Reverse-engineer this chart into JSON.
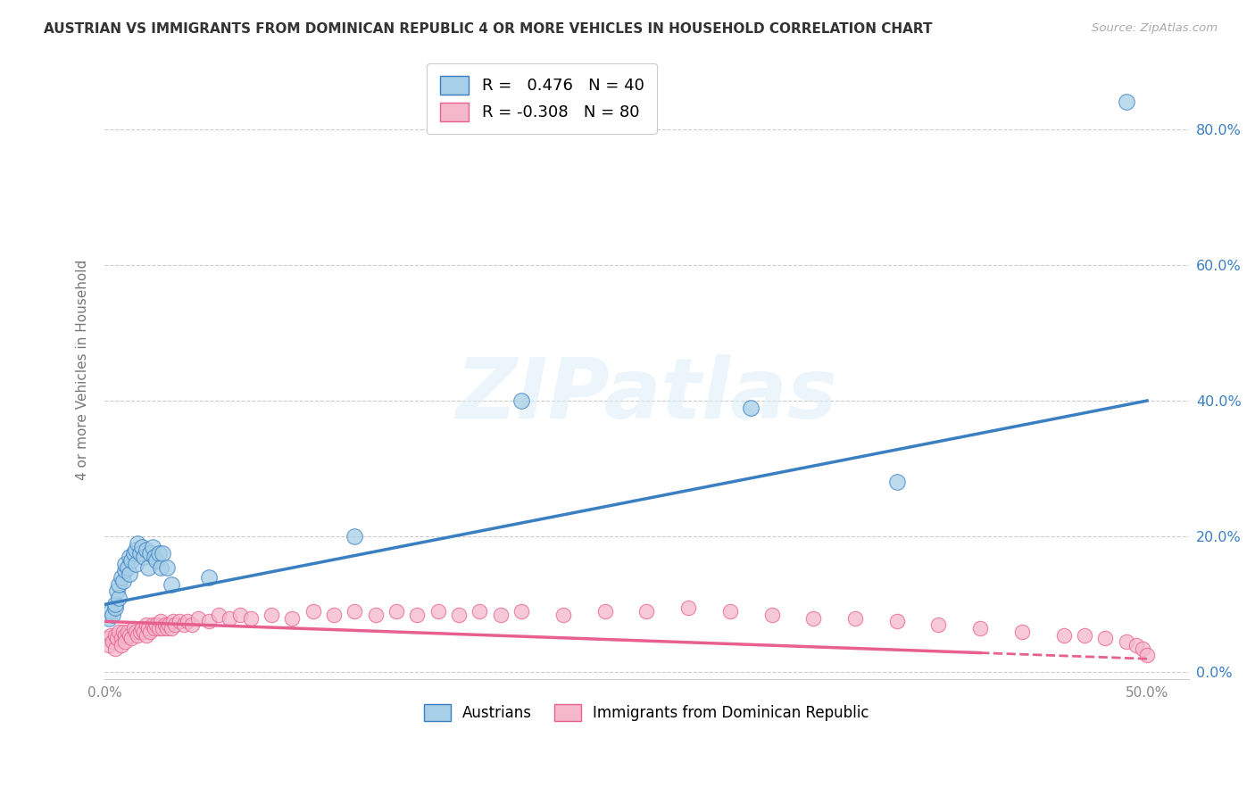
{
  "title": "AUSTRIAN VS IMMIGRANTS FROM DOMINICAN REPUBLIC 4 OR MORE VEHICLES IN HOUSEHOLD CORRELATION CHART",
  "source": "Source: ZipAtlas.com",
  "ylabel": "4 or more Vehicles in Household",
  "xlim": [
    0.0,
    0.52
  ],
  "ylim": [
    -0.01,
    0.9
  ],
  "legend1_r": "0.476",
  "legend1_n": "40",
  "legend2_r": "-0.308",
  "legend2_n": "80",
  "blue_color": "#a8cfe8",
  "pink_color": "#f5b8cb",
  "line_blue": "#3a7fc1",
  "line_pink": "#e86090",
  "watermark_text": "ZIPatlas",
  "blue_trendline_start_y": 0.1,
  "blue_trendline_end_y": 0.4,
  "pink_trendline_start_y": 0.075,
  "pink_trendline_end_y": 0.02,
  "blue_scatter_x": [
    0.002,
    0.003,
    0.004,
    0.005,
    0.005,
    0.006,
    0.007,
    0.007,
    0.008,
    0.009,
    0.01,
    0.01,
    0.011,
    0.012,
    0.012,
    0.013,
    0.014,
    0.015,
    0.015,
    0.016,
    0.017,
    0.018,
    0.019,
    0.02,
    0.021,
    0.022,
    0.023,
    0.024,
    0.025,
    0.026,
    0.027,
    0.028,
    0.03,
    0.032,
    0.05,
    0.12,
    0.2,
    0.31,
    0.38,
    0.49
  ],
  "blue_scatter_y": [
    0.08,
    0.09,
    0.085,
    0.095,
    0.1,
    0.12,
    0.11,
    0.13,
    0.14,
    0.135,
    0.15,
    0.16,
    0.155,
    0.145,
    0.17,
    0.165,
    0.175,
    0.16,
    0.18,
    0.19,
    0.175,
    0.185,
    0.17,
    0.18,
    0.155,
    0.175,
    0.185,
    0.17,
    0.165,
    0.175,
    0.155,
    0.175,
    0.155,
    0.13,
    0.14,
    0.2,
    0.4,
    0.39,
    0.28,
    0.84
  ],
  "pink_scatter_x": [
    0.001,
    0.002,
    0.003,
    0.004,
    0.005,
    0.005,
    0.006,
    0.007,
    0.008,
    0.008,
    0.009,
    0.01,
    0.01,
    0.011,
    0.012,
    0.013,
    0.014,
    0.015,
    0.016,
    0.017,
    0.018,
    0.019,
    0.02,
    0.02,
    0.021,
    0.022,
    0.023,
    0.024,
    0.025,
    0.026,
    0.027,
    0.028,
    0.029,
    0.03,
    0.031,
    0.032,
    0.033,
    0.034,
    0.036,
    0.038,
    0.04,
    0.042,
    0.045,
    0.05,
    0.055,
    0.06,
    0.065,
    0.07,
    0.08,
    0.09,
    0.1,
    0.11,
    0.12,
    0.13,
    0.14,
    0.15,
    0.16,
    0.17,
    0.18,
    0.19,
    0.2,
    0.22,
    0.24,
    0.26,
    0.28,
    0.3,
    0.32,
    0.34,
    0.36,
    0.38,
    0.4,
    0.42,
    0.44,
    0.46,
    0.47,
    0.48,
    0.49,
    0.495,
    0.498,
    0.5
  ],
  "pink_scatter_y": [
    0.05,
    0.04,
    0.055,
    0.045,
    0.055,
    0.035,
    0.05,
    0.06,
    0.05,
    0.04,
    0.06,
    0.055,
    0.045,
    0.06,
    0.055,
    0.05,
    0.065,
    0.06,
    0.055,
    0.06,
    0.065,
    0.06,
    0.07,
    0.055,
    0.065,
    0.06,
    0.07,
    0.065,
    0.07,
    0.065,
    0.075,
    0.065,
    0.07,
    0.065,
    0.07,
    0.065,
    0.075,
    0.07,
    0.075,
    0.07,
    0.075,
    0.07,
    0.08,
    0.075,
    0.085,
    0.08,
    0.085,
    0.08,
    0.085,
    0.08,
    0.09,
    0.085,
    0.09,
    0.085,
    0.09,
    0.085,
    0.09,
    0.085,
    0.09,
    0.085,
    0.09,
    0.085,
    0.09,
    0.09,
    0.095,
    0.09,
    0.085,
    0.08,
    0.08,
    0.075,
    0.07,
    0.065,
    0.06,
    0.055,
    0.055,
    0.05,
    0.045,
    0.04,
    0.035,
    0.025
  ]
}
